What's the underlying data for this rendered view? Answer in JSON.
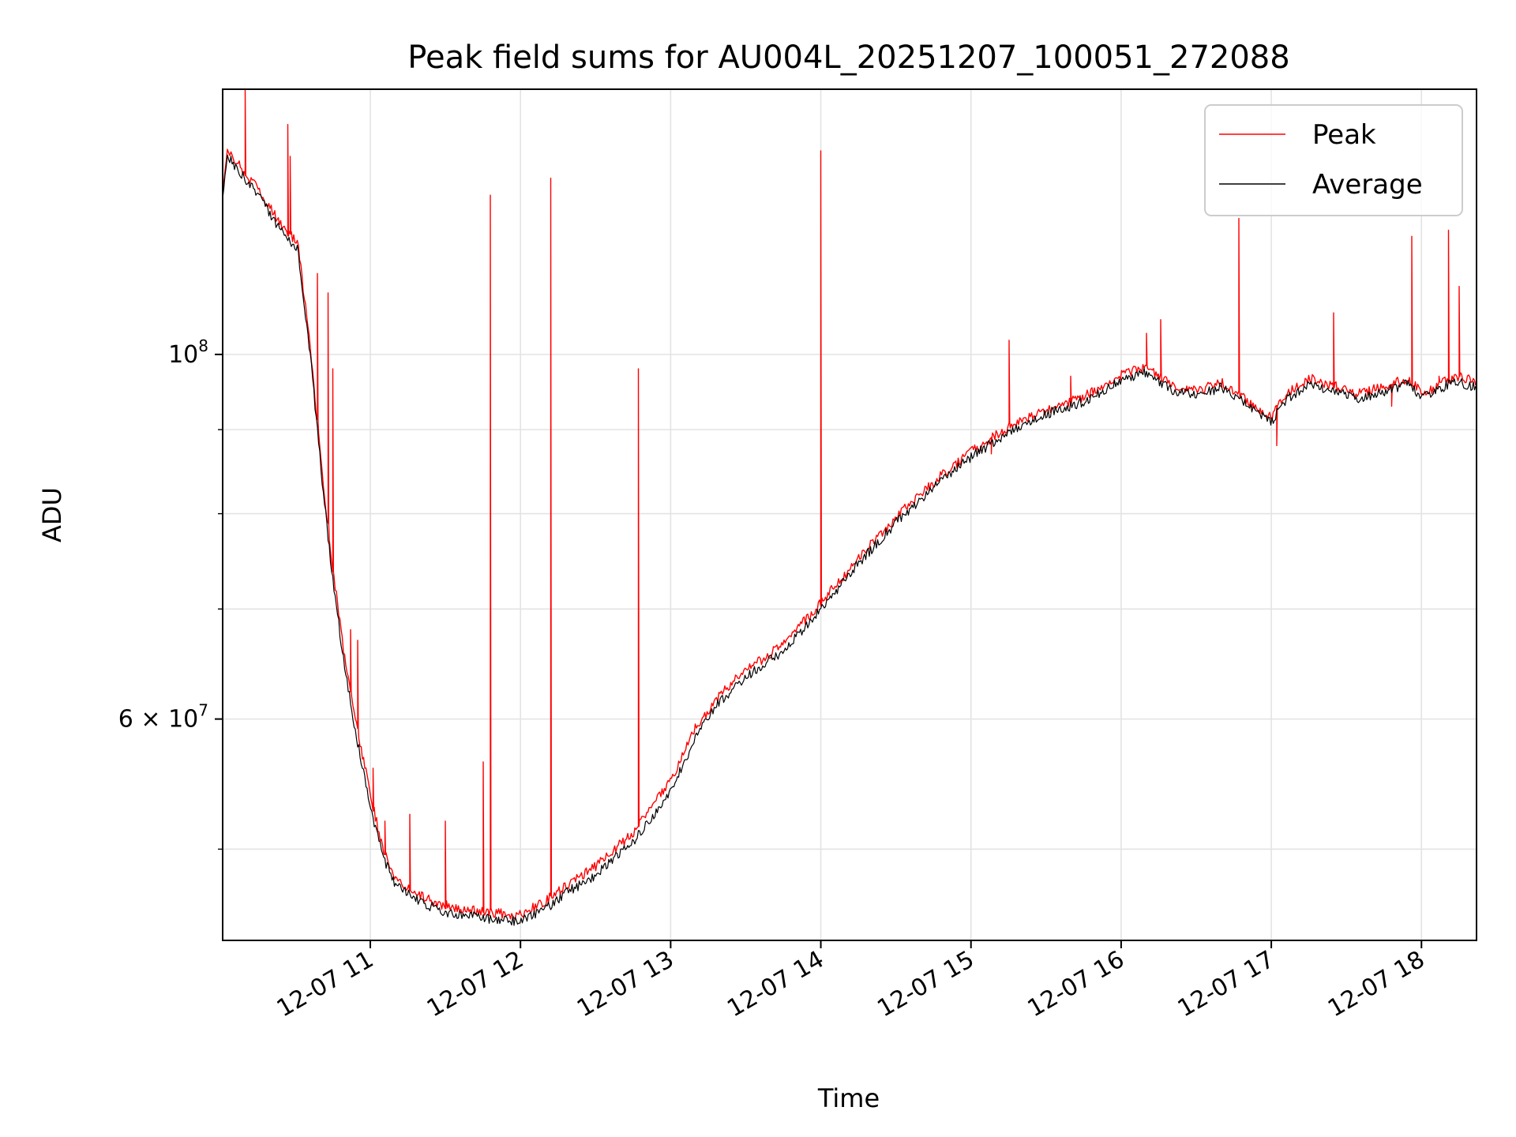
{
  "chart_data": {
    "type": "line",
    "title": "Peak field sums for AU004L_20251207_100051_272088",
    "xlabel": "Time",
    "ylabel": "ADU",
    "y_scale": "log",
    "x_ticks": [
      {
        "label": "12-07 11",
        "t": "2025-12-07 11:00"
      },
      {
        "label": "12-07 12",
        "t": "2025-12-07 12:00"
      },
      {
        "label": "12-07 13",
        "t": "2025-12-07 13:00"
      },
      {
        "label": "12-07 14",
        "t": "2025-12-07 14:00"
      },
      {
        "label": "12-07 15",
        "t": "2025-12-07 15:00"
      },
      {
        "label": "12-07 16",
        "t": "2025-12-07 16:00"
      },
      {
        "label": "12-07 17",
        "t": "2025-12-07 17:00"
      },
      {
        "label": "12-07 18",
        "t": "2025-12-07 18:00"
      }
    ],
    "y_ticks_major": [
      {
        "value": 60000000,
        "base": "6 × 10",
        "exp": "7"
      },
      {
        "value": 100000000,
        "base": "10",
        "exp": "8"
      }
    ],
    "y_ticks_minor": [
      50000000,
      70000000,
      80000000,
      90000000
    ],
    "xlim": [
      "2025-12-07 10:01",
      "2025-12-07 18:22"
    ],
    "ylim": [
      44000000,
      145000000
    ],
    "grid": true,
    "legend_position": "top-right",
    "legend": [
      {
        "name": "Peak",
        "color": "#ff0000"
      },
      {
        "name": "Average",
        "color": "#000000"
      }
    ],
    "series": [
      {
        "name": "Average",
        "color": "#000000",
        "points": [
          [
            "2025-12-07 10:01",
            125000000
          ],
          [
            "2025-12-07 10:03",
            132000000
          ],
          [
            "2025-12-07 10:10",
            128000000
          ],
          [
            "2025-12-07 10:17",
            124000000
          ],
          [
            "2025-12-07 10:24",
            119000000
          ],
          [
            "2025-12-07 10:31",
            116000000
          ],
          [
            "2025-12-07 10:36",
            100000000
          ],
          [
            "2025-12-07 10:41",
            83000000
          ],
          [
            "2025-12-07 10:45",
            73000000
          ],
          [
            "2025-12-07 10:50",
            64000000
          ],
          [
            "2025-12-07 10:55",
            58000000
          ],
          [
            "2025-12-07 11:00",
            53000000
          ],
          [
            "2025-12-07 11:05",
            49500000
          ],
          [
            "2025-12-07 11:10",
            47500000
          ],
          [
            "2025-12-07 11:20",
            46400000
          ],
          [
            "2025-12-07 11:30",
            45800000
          ],
          [
            "2025-12-07 11:45",
            45400000
          ],
          [
            "2025-12-07 12:00",
            45200000
          ],
          [
            "2025-12-07 12:10",
            46000000
          ],
          [
            "2025-12-07 12:20",
            47200000
          ],
          [
            "2025-12-07 12:30",
            48200000
          ],
          [
            "2025-12-07 12:45",
            50500000
          ],
          [
            "2025-12-07 13:00",
            54200000
          ],
          [
            "2025-12-07 13:10",
            58500000
          ],
          [
            "2025-12-07 13:20",
            61600000
          ],
          [
            "2025-12-07 13:30",
            63600000
          ],
          [
            "2025-12-07 13:45",
            66000000
          ],
          [
            "2025-12-07 14:00",
            70000000
          ],
          [
            "2025-12-07 14:15",
            74600000
          ],
          [
            "2025-12-07 14:30",
            79000000
          ],
          [
            "2025-12-07 14:45",
            83000000
          ],
          [
            "2025-12-07 15:00",
            86600000
          ],
          [
            "2025-12-07 15:15",
            89700000
          ],
          [
            "2025-12-07 15:30",
            92000000
          ],
          [
            "2025-12-07 15:45",
            93600000
          ],
          [
            "2025-12-07 16:00",
            96500000
          ],
          [
            "2025-12-07 16:10",
            97600000
          ],
          [
            "2025-12-07 16:20",
            95200000
          ],
          [
            "2025-12-07 16:30",
            94400000
          ],
          [
            "2025-12-07 16:40",
            95500000
          ],
          [
            "2025-12-07 16:50",
            93300000
          ],
          [
            "2025-12-07 17:00",
            91000000
          ],
          [
            "2025-12-07 17:05",
            93600000
          ],
          [
            "2025-12-07 17:15",
            96000000
          ],
          [
            "2025-12-07 17:25",
            95000000
          ],
          [
            "2025-12-07 17:35",
            94000000
          ],
          [
            "2025-12-07 17:45",
            94900000
          ],
          [
            "2025-12-07 17:55",
            96000000
          ],
          [
            "2025-12-07 18:00",
            94000000
          ],
          [
            "2025-12-07 18:05",
            94700000
          ],
          [
            "2025-12-07 18:10",
            95800000
          ],
          [
            "2025-12-07 18:15",
            96200000
          ],
          [
            "2025-12-07 18:22",
            95500000
          ]
        ]
      },
      {
        "name": "Peak",
        "color": "#ff0000",
        "points": [
          [
            "2025-12-07 10:01",
            126000000
          ],
          [
            "2025-12-07 10:03",
            133000000
          ],
          [
            "2025-12-07 10:10",
            129000000
          ],
          [
            "2025-12-07 10:17",
            125000000
          ],
          [
            "2025-12-07 10:24",
            120000000
          ],
          [
            "2025-12-07 10:31",
            117000000
          ],
          [
            "2025-12-07 10:36",
            101000000
          ],
          [
            "2025-12-07 10:41",
            84000000
          ],
          [
            "2025-12-07 10:45",
            74000000
          ],
          [
            "2025-12-07 10:50",
            65000000
          ],
          [
            "2025-12-07 10:55",
            59000000
          ],
          [
            "2025-12-07 11:00",
            54000000
          ],
          [
            "2025-12-07 11:05",
            50000000
          ],
          [
            "2025-12-07 11:10",
            48000000
          ],
          [
            "2025-12-07 11:20",
            46800000
          ],
          [
            "2025-12-07 11:30",
            46200000
          ],
          [
            "2025-12-07 11:45",
            45800000
          ],
          [
            "2025-12-07 12:00",
            45600000
          ],
          [
            "2025-12-07 12:10",
            46500000
          ],
          [
            "2025-12-07 12:20",
            47700000
          ],
          [
            "2025-12-07 12:30",
            48800000
          ],
          [
            "2025-12-07 12:45",
            51200000
          ],
          [
            "2025-12-07 13:00",
            55000000
          ],
          [
            "2025-12-07 13:10",
            59300000
          ],
          [
            "2025-12-07 13:20",
            62200000
          ],
          [
            "2025-12-07 13:30",
            64200000
          ],
          [
            "2025-12-07 13:45",
            66600000
          ],
          [
            "2025-12-07 14:00",
            70600000
          ],
          [
            "2025-12-07 14:15",
            75200000
          ],
          [
            "2025-12-07 14:30",
            79600000
          ],
          [
            "2025-12-07 14:45",
            83600000
          ],
          [
            "2025-12-07 15:00",
            87200000
          ],
          [
            "2025-12-07 15:15",
            90300000
          ],
          [
            "2025-12-07 15:30",
            92600000
          ],
          [
            "2025-12-07 15:45",
            94200000
          ],
          [
            "2025-12-07 16:00",
            97200000
          ],
          [
            "2025-12-07 16:10",
            98300000
          ],
          [
            "2025-12-07 16:20",
            95900000
          ],
          [
            "2025-12-07 16:30",
            95000000
          ],
          [
            "2025-12-07 16:40",
            96100000
          ],
          [
            "2025-12-07 16:50",
            93900000
          ],
          [
            "2025-12-07 17:00",
            91600000
          ],
          [
            "2025-12-07 17:05",
            94300000
          ],
          [
            "2025-12-07 17:15",
            96700000
          ],
          [
            "2025-12-07 17:25",
            95700000
          ],
          [
            "2025-12-07 17:35",
            94700000
          ],
          [
            "2025-12-07 17:45",
            95600000
          ],
          [
            "2025-12-07 17:55",
            96700000
          ],
          [
            "2025-12-07 18:00",
            94700000
          ],
          [
            "2025-12-07 18:05",
            95400000
          ],
          [
            "2025-12-07 18:10",
            96500000
          ],
          [
            "2025-12-07 18:15",
            96900000
          ],
          [
            "2025-12-07 18:22",
            96200000
          ]
        ],
        "spikes": [
          [
            "2025-12-07 10:10",
            145000000
          ],
          [
            "2025-12-07 10:27",
            138000000
          ],
          [
            "2025-12-07 10:28",
            132000000
          ],
          [
            "2025-12-07 10:39",
            112000000
          ],
          [
            "2025-12-07 10:43",
            109000000
          ],
          [
            "2025-12-07 10:45",
            98000000
          ],
          [
            "2025-12-07 10:52",
            68000000
          ],
          [
            "2025-12-07 10:55",
            67000000
          ],
          [
            "2025-12-07 11:01",
            56000000
          ],
          [
            "2025-12-07 11:06",
            52000000
          ],
          [
            "2025-12-07 11:16",
            52500000
          ],
          [
            "2025-12-07 11:30",
            52000000
          ],
          [
            "2025-12-07 11:45",
            56500000
          ],
          [
            "2025-12-07 11:48",
            125000000
          ],
          [
            "2025-12-07 12:12",
            128000000
          ],
          [
            "2025-12-07 12:47",
            98000000
          ],
          [
            "2025-12-07 14:00",
            133000000
          ],
          [
            "2025-12-07 15:08",
            87000000
          ],
          [
            "2025-12-07 15:15",
            102000000
          ],
          [
            "2025-12-07 15:40",
            97000000
          ],
          [
            "2025-12-07 16:10",
            103000000
          ],
          [
            "2025-12-07 16:16",
            105000000
          ],
          [
            "2025-12-07 16:47",
            121000000
          ],
          [
            "2025-12-07 17:02",
            88000000
          ],
          [
            "2025-12-07 17:25",
            106000000
          ],
          [
            "2025-12-07 17:48",
            93000000
          ],
          [
            "2025-12-07 17:56",
            118000000
          ],
          [
            "2025-12-07 18:07",
            97000000
          ],
          [
            "2025-12-07 18:11",
            119000000
          ],
          [
            "2025-12-07 18:15",
            110000000
          ]
        ]
      }
    ]
  }
}
